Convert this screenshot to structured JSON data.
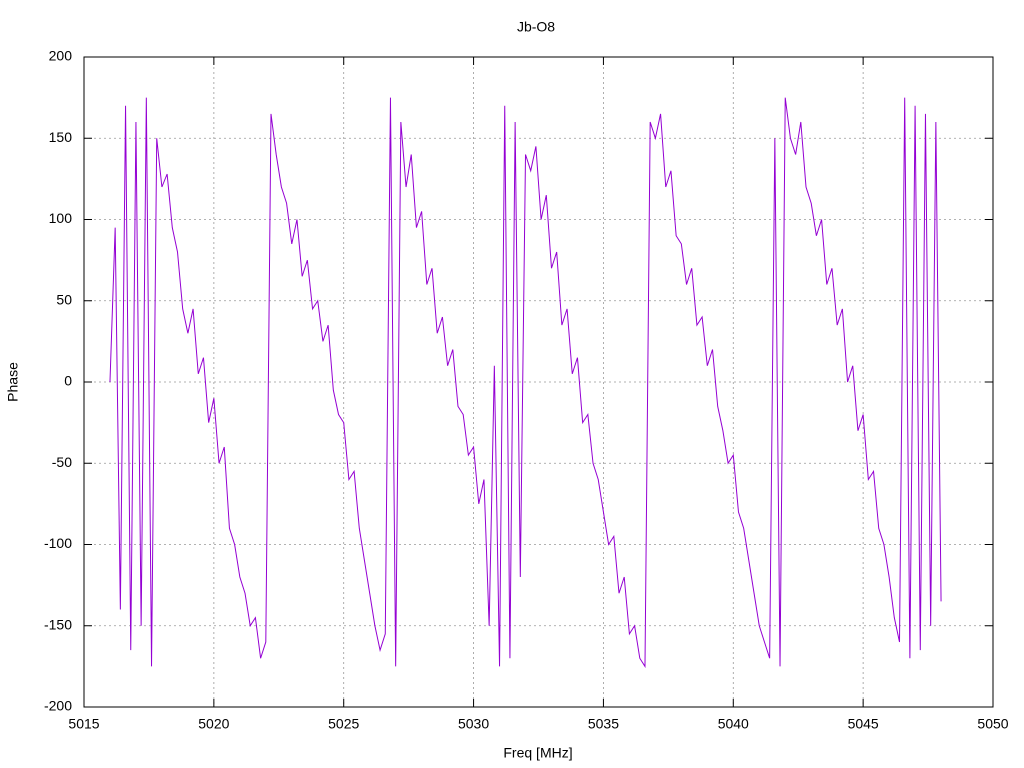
{
  "chart_data": {
    "type": "line",
    "title": "Jb-O8",
    "x_label": "Freq [MHz]",
    "y_label": "Phase",
    "xlim": [
      5015,
      5050
    ],
    "xticks": [
      5015,
      5020,
      5025,
      5030,
      5035,
      5040,
      5045,
      5050
    ],
    "ylim": [
      -200,
      200
    ],
    "yticks": [
      -200,
      -150,
      -100,
      -50,
      0,
      50,
      100,
      150,
      200
    ],
    "grid": true,
    "x": [
      5016.0,
      5016.2,
      5016.4,
      5016.6,
      5016.8,
      5017.0,
      5017.2,
      5017.4,
      5017.6,
      5017.8,
      5018.0,
      5018.2,
      5018.4,
      5018.6,
      5018.8,
      5019.0,
      5019.2,
      5019.4,
      5019.6,
      5019.8,
      5020.0,
      5020.2,
      5020.4,
      5020.6,
      5020.8,
      5021.0,
      5021.2,
      5021.4,
      5021.6,
      5021.8,
      5022.0,
      5022.2,
      5022.4,
      5022.6,
      5022.8,
      5023.0,
      5023.2,
      5023.4,
      5023.6,
      5023.8,
      5024.0,
      5024.2,
      5024.4,
      5024.6,
      5024.8,
      5025.0,
      5025.2,
      5025.4,
      5025.6,
      5025.8,
      5026.0,
      5026.2,
      5026.4,
      5026.6,
      5026.8,
      5027.0,
      5027.2,
      5027.4,
      5027.6,
      5027.8,
      5028.0,
      5028.2,
      5028.4,
      5028.6,
      5028.8,
      5029.0,
      5029.2,
      5029.4,
      5029.6,
      5029.8,
      5030.0,
      5030.2,
      5030.4,
      5030.6,
      5030.8,
      5031.0,
      5031.2,
      5031.4,
      5031.6,
      5031.8,
      5032.0,
      5032.2,
      5032.4,
      5032.6,
      5032.8,
      5033.0,
      5033.2,
      5033.4,
      5033.6,
      5033.8,
      5034.0,
      5034.2,
      5034.4,
      5034.6,
      5034.8,
      5035.0,
      5035.2,
      5035.4,
      5035.6,
      5035.8,
      5036.0,
      5036.2,
      5036.4,
      5036.6,
      5036.8,
      5037.0,
      5037.2,
      5037.4,
      5037.6,
      5037.8,
      5038.0,
      5038.2,
      5038.4,
      5038.6,
      5038.8,
      5039.0,
      5039.2,
      5039.4,
      5039.6,
      5039.8,
      5040.0,
      5040.2,
      5040.4,
      5040.6,
      5040.8,
      5041.0,
      5041.2,
      5041.4,
      5041.6,
      5041.8,
      5042.0,
      5042.2,
      5042.4,
      5042.6,
      5042.8,
      5043.0,
      5043.2,
      5043.4,
      5043.6,
      5043.8,
      5044.0,
      5044.2,
      5044.4,
      5044.6,
      5044.8,
      5045.0,
      5045.2,
      5045.4,
      5045.6,
      5045.8,
      5046.0,
      5046.2,
      5046.4,
      5046.6,
      5046.8,
      5047.0,
      5047.2,
      5047.4,
      5047.6,
      5047.8,
      5048.0
    ],
    "series": [
      {
        "name": "Phase",
        "color": "#9400d3",
        "values": [
          0,
          95,
          -140,
          170,
          -165,
          160,
          -150,
          175,
          -175,
          150,
          120,
          128,
          95,
          80,
          45,
          30,
          45,
          5,
          15,
          -25,
          -10,
          -50,
          -40,
          -90,
          -100,
          -120,
          -130,
          -150,
          -145,
          -170,
          -160,
          165,
          140,
          120,
          110,
          85,
          100,
          65,
          75,
          45,
          50,
          25,
          35,
          -5,
          -20,
          -25,
          -60,
          -55,
          -90,
          -110,
          -130,
          -150,
          -165,
          -155,
          175,
          -175,
          160,
          120,
          140,
          95,
          105,
          60,
          70,
          30,
          40,
          10,
          20,
          -15,
          -20,
          -45,
          -40,
          -75,
          -60,
          -150,
          10,
          -175,
          170,
          -170,
          160,
          -120,
          140,
          130,
          145,
          100,
          115,
          70,
          80,
          35,
          45,
          5,
          15,
          -25,
          -20,
          -50,
          -60,
          -80,
          -100,
          -95,
          -130,
          -120,
          -155,
          -150,
          -170,
          -175,
          160,
          150,
          165,
          120,
          130,
          90,
          85,
          60,
          70,
          35,
          40,
          10,
          20,
          -15,
          -30,
          -50,
          -45,
          -80,
          -90,
          -110,
          -130,
          -150,
          -160,
          -170,
          150,
          -175,
          175,
          150,
          140,
          160,
          120,
          110,
          90,
          100,
          60,
          70,
          35,
          45,
          0,
          10,
          -30,
          -20,
          -60,
          -55,
          -90,
          -100,
          -120,
          -145,
          -160,
          175,
          -170,
          170,
          -165,
          165,
          -150,
          160,
          -135
        ]
      }
    ]
  }
}
